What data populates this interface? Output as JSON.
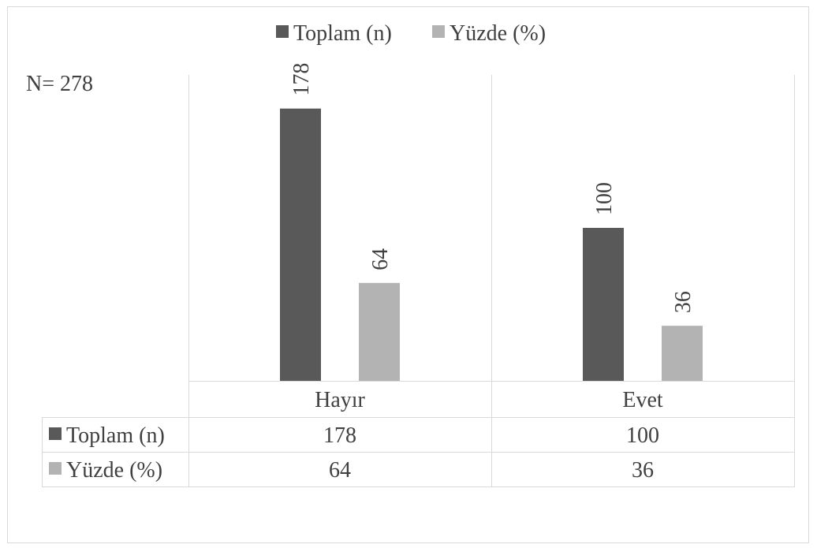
{
  "chart_data": {
    "type": "bar",
    "title": "",
    "annotation": "N= 278",
    "categories": [
      "Hayır",
      "Evet"
    ],
    "series": [
      {
        "name": "Toplam (n)",
        "values": [
          178,
          100
        ],
        "color": "#595959"
      },
      {
        "name": "Yüzde (%)",
        "values": [
          64,
          36
        ],
        "color": "#b3b3b3"
      }
    ],
    "ylim": [
      0,
      200
    ],
    "legend_position": "top",
    "grid": false,
    "data_table": true,
    "data_labels": true
  }
}
